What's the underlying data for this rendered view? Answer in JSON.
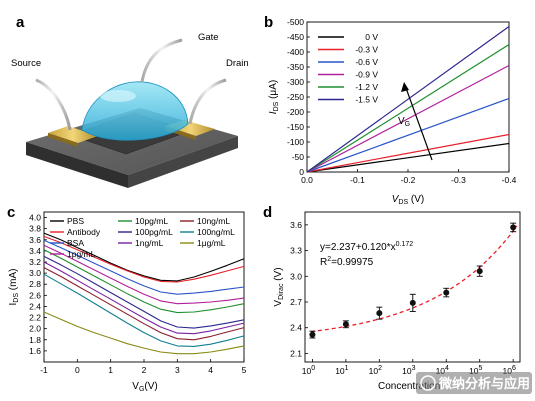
{
  "panels": {
    "a": {
      "label": "a",
      "labels": {
        "gate": "Gate",
        "source": "Source",
        "drain": "Drain"
      }
    },
    "b": {
      "label": "b"
    },
    "c": {
      "label": "c"
    },
    "d": {
      "label": "d"
    }
  },
  "watermark": "微纳分析与应用",
  "colors": {
    "black": "#000000",
    "red": "#e8202a",
    "blue": "#2a55c8",
    "green": "#1f8f2e",
    "magenta": "#b0209c",
    "navy": "#2b2790",
    "purple": "#7a1fa0",
    "olive": "#8a8a15",
    "teal": "#117f8f",
    "fit": "#e8202a"
  },
  "chart_data": [
    {
      "panel": "b",
      "type": "line",
      "xlabel": "V_DS (V)",
      "ylabel": "I_DS (μA)",
      "xlim": [
        0,
        -0.4
      ],
      "ylim": [
        0,
        -500
      ],
      "xticks": [
        "0.0",
        "-0.1",
        "-0.2",
        "-0.3",
        "-0.4"
      ],
      "yticks": [
        "0",
        "-50",
        "-100",
        "-150",
        "-200",
        "-250",
        "-300",
        "-350",
        "-400",
        "-450",
        "-500"
      ],
      "legend_position": "top-left",
      "annotation": "V_G",
      "x": [
        0,
        -0.4
      ],
      "series": [
        {
          "name": "0 V",
          "color": "#000000",
          "values": [
            0,
            -95
          ]
        },
        {
          "name": "-0.3 V",
          "color": "#e8202a",
          "values": [
            0,
            -125
          ]
        },
        {
          "name": "-0.6 V",
          "color": "#2a55c8",
          "values": [
            0,
            -245
          ]
        },
        {
          "name": "-0.9 V",
          "color": "#b0209c",
          "values": [
            0,
            -355
          ]
        },
        {
          "name": "-1.2 V",
          "color": "#1f8f2e",
          "values": [
            0,
            -425
          ]
        },
        {
          "name": "-1.5 V",
          "color": "#2b2790",
          "values": [
            0,
            -485
          ]
        }
      ]
    },
    {
      "panel": "c",
      "type": "line",
      "xlabel": "V_G(V)",
      "ylabel": "I_DS (mA)",
      "xlim": [
        -1,
        5
      ],
      "ylim": [
        1.4,
        4.1
      ],
      "xticks": [
        "-1",
        "0",
        "1",
        "2",
        "3",
        "4",
        "5"
      ],
      "yticks": [
        "1.6",
        "1.8",
        "2.0",
        "2.2",
        "2.4",
        "2.6",
        "2.8",
        "3.0",
        "3.2",
        "3.4",
        "3.6",
        "3.8",
        "4.0"
      ],
      "legend_position": "top",
      "x": [
        -1,
        -0.5,
        0,
        0.5,
        1,
        1.5,
        2,
        2.5,
        3,
        3.5,
        4,
        4.5,
        5
      ],
      "series": [
        {
          "name": "PBS",
          "color": "#000000",
          "values": [
            3.72,
            3.6,
            3.46,
            3.32,
            3.18,
            3.05,
            2.95,
            2.87,
            2.86,
            2.93,
            3.03,
            3.14,
            3.26
          ]
        },
        {
          "name": "Antibody",
          "color": "#e8202a",
          "values": [
            3.66,
            3.55,
            3.42,
            3.29,
            3.16,
            3.04,
            2.93,
            2.85,
            2.84,
            2.89,
            2.96,
            3.04,
            3.12
          ]
        },
        {
          "name": "BSA",
          "color": "#2a55c8",
          "values": [
            3.59,
            3.46,
            3.32,
            3.18,
            3.04,
            2.9,
            2.77,
            2.66,
            2.62,
            2.64,
            2.67,
            2.71,
            2.75
          ]
        },
        {
          "name": "1pg/mL",
          "color": "#b0209c",
          "values": [
            3.5,
            3.36,
            3.21,
            3.06,
            2.91,
            2.76,
            2.62,
            2.5,
            2.45,
            2.46,
            2.48,
            2.51,
            2.55
          ]
        },
        {
          "name": "10pg/mL",
          "color": "#1f8f2e",
          "values": [
            3.42,
            3.27,
            3.11,
            2.95,
            2.79,
            2.63,
            2.48,
            2.35,
            2.29,
            2.3,
            2.34,
            2.39,
            2.45
          ]
        },
        {
          "name": "100pg/mL",
          "color": "#2b2790",
          "values": [
            3.3,
            3.15,
            2.99,
            2.82,
            2.65,
            2.48,
            2.31,
            2.14,
            2.03,
            2.01,
            2.05,
            2.1,
            2.16
          ]
        },
        {
          "name": "1ng/mL",
          "color": "#7a1fa0",
          "values": [
            3.2,
            3.04,
            2.87,
            2.7,
            2.53,
            2.36,
            2.19,
            2.03,
            1.92,
            1.91,
            1.96,
            2.03,
            2.1
          ]
        },
        {
          "name": "10ng/mL",
          "color": "#8a1f2a",
          "values": [
            3.1,
            2.94,
            2.77,
            2.6,
            2.43,
            2.26,
            2.09,
            1.93,
            1.82,
            1.8,
            1.86,
            1.94,
            2.02
          ]
        },
        {
          "name": "100ng/mL",
          "color": "#117f8f",
          "values": [
            2.98,
            2.81,
            2.64,
            2.46,
            2.28,
            2.1,
            1.93,
            1.78,
            1.69,
            1.68,
            1.72,
            1.79,
            1.87
          ]
        },
        {
          "name": "1μg/mL",
          "color": "#8a8a15",
          "values": [
            2.3,
            2.17,
            2.04,
            1.93,
            1.83,
            1.73,
            1.65,
            1.58,
            1.55,
            1.55,
            1.58,
            1.63,
            1.69
          ]
        }
      ]
    },
    {
      "panel": "d",
      "type": "scatter",
      "xlabel": "Concentration",
      "ylabel": "V_Dirac (V)",
      "xscale": "log",
      "xlim": [
        0.6,
        1600000.0
      ],
      "ylim": [
        2.0,
        3.75
      ],
      "xticks": [
        "10^0",
        "10^1",
        "10^2",
        "10^3",
        "10^4",
        "10^5",
        "10^6"
      ],
      "yticks": [
        "2.1",
        "2.4",
        "2.7",
        "3.0",
        "3.3",
        "3.6"
      ],
      "equation": "y=2.237+0.120*x^0.172",
      "r2": "R^2=0.99975",
      "x": [
        1,
        10,
        100,
        1000,
        10000,
        100000,
        1000000
      ],
      "values": [
        2.32,
        2.44,
        2.57,
        2.69,
        2.81,
        3.06,
        3.57
      ],
      "errors": [
        0.04,
        0.04,
        0.07,
        0.1,
        0.05,
        0.06,
        0.05
      ],
      "fit": {
        "a": 2.237,
        "b": 0.12,
        "c": 0.172,
        "color": "#e8202a"
      }
    }
  ]
}
